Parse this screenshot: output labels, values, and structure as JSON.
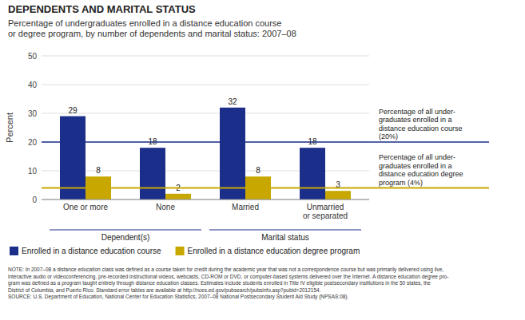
{
  "chart_data": {
    "type": "bar",
    "title": "DEPENDENTS AND MARITAL STATUS",
    "subtitle": "Percentage of undergraduates enrolled in a distance education course\nor degree program, by number of dependents and marital status: 2007–08",
    "categories": [
      "One or more",
      "None",
      "Married",
      "Unmarried\nor separated"
    ],
    "series": [
      {
        "name": "Enrolled in a distance education course",
        "color": "#1B2F8A",
        "values": [
          29,
          18,
          32,
          18
        ]
      },
      {
        "name": "Enrolled in a distance education degree program",
        "color": "#C8A800",
        "values": [
          8,
          2,
          8,
          3
        ]
      }
    ],
    "ylabel": "Percent",
    "ylim": [
      0,
      50
    ],
    "yticks": [
      0,
      10,
      20,
      30,
      40,
      50
    ],
    "grid": true,
    "data_labels": true,
    "legend": "bottom",
    "reference_lines": [
      {
        "value": 20,
        "color": "#1B2F8A",
        "label": "Percentage of all under-\ngraduates enrolled in a\ndistance education course\n(20%)"
      },
      {
        "value": 4,
        "color": "#C8A800",
        "label": "Percentage of all under-\ngraduates enrolled in a\ndistance education degree\nprogram (4%)"
      }
    ],
    "category_groups": [
      {
        "label": "Dependent(s)",
        "categories": [
          "One or more",
          "None"
        ]
      },
      {
        "label": "Marital status",
        "categories": [
          "Married",
          "Unmarried\nor separated"
        ]
      }
    ],
    "note": "NOTE: In 2007–08 a distance education class was defined as a course taken for credit during the academic year that was not a correspondence course but was primarily delivered using live,\ninteractive audio or videoconferencing, pre-recorded instructional videos, webcasts, CD-ROM or DVD, or computer-based systems delivered over the Internet. A distance education degree pro-\ngram was defined as a program taught entirely through distance education classes. Estimates include students enrolled in Title IV eligible postsecondary institutions in the 50 states, the\nDistrict of Columbia, and Puerto Rico. Standard error tables are available at http://nces.ed.gov/pubsearch/pubsinfo.asp?pubid=2012154.\nSOURCE: U.S. Department of Education, National Center for Education Statistics, 2007–08 National Postsecondary Student Aid Study (NPSAS:08)."
  }
}
